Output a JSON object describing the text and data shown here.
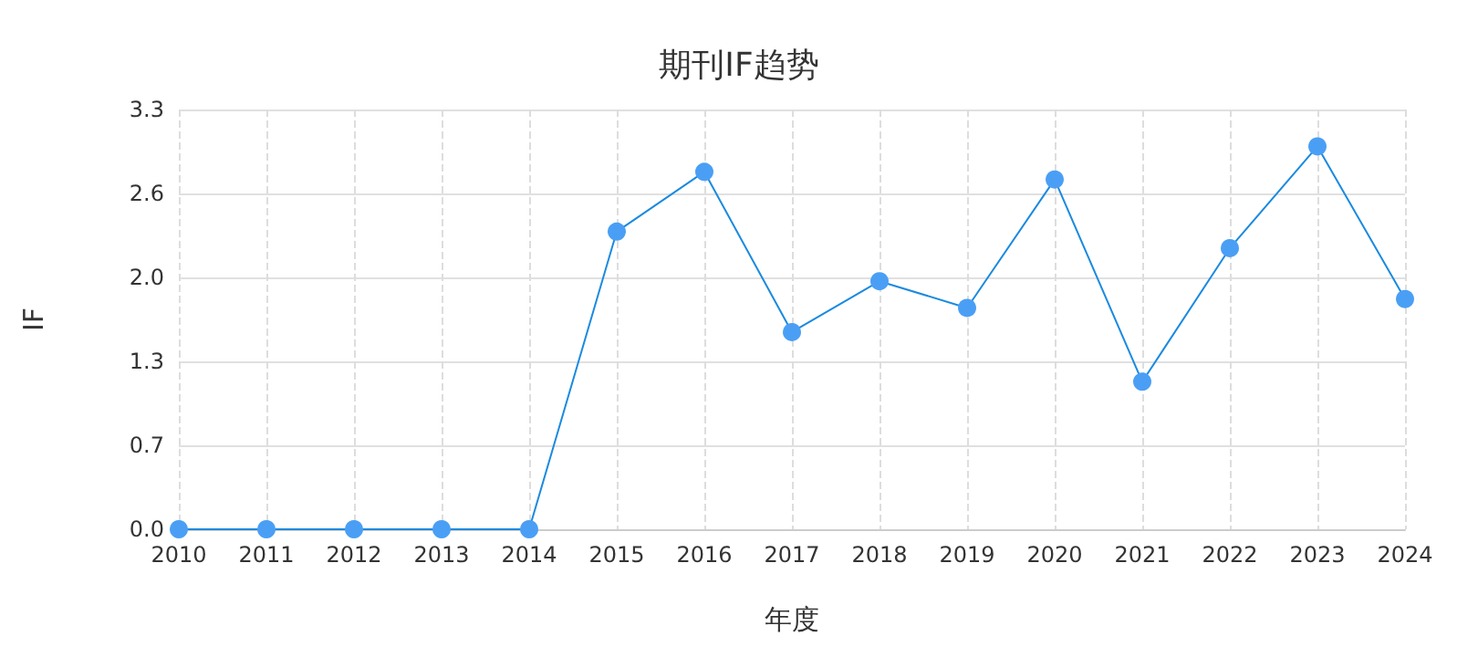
{
  "chart_data": {
    "type": "line",
    "title": "期刊IF趋势",
    "xlabel": "年度",
    "ylabel": "IF",
    "categories": [
      "2010",
      "2011",
      "2012",
      "2013",
      "2014",
      "2015",
      "2016",
      "2017",
      "2018",
      "2019",
      "2020",
      "2021",
      "2022",
      "2023",
      "2024"
    ],
    "series": [
      {
        "color": "#4a9ff5",
        "values": [
          0,
          0,
          0,
          0,
          0,
          2.34,
          2.81,
          1.55,
          1.95,
          1.74,
          2.75,
          1.16,
          2.21,
          3.01,
          1.81
        ]
      }
    ],
    "ylim": [
      0,
      3.3
    ],
    "yticks": [
      {
        "value": 0,
        "label": "0.0"
      },
      {
        "value": 0.66,
        "label": "0.7"
      },
      {
        "value": 1.32,
        "label": "1.3"
      },
      {
        "value": 1.98,
        "label": "2.0"
      },
      {
        "value": 2.64,
        "label": "2.6"
      },
      {
        "value": 3.3,
        "label": "3.3"
      }
    ],
    "grid": true,
    "marker": "circle",
    "line_style": "solid"
  }
}
